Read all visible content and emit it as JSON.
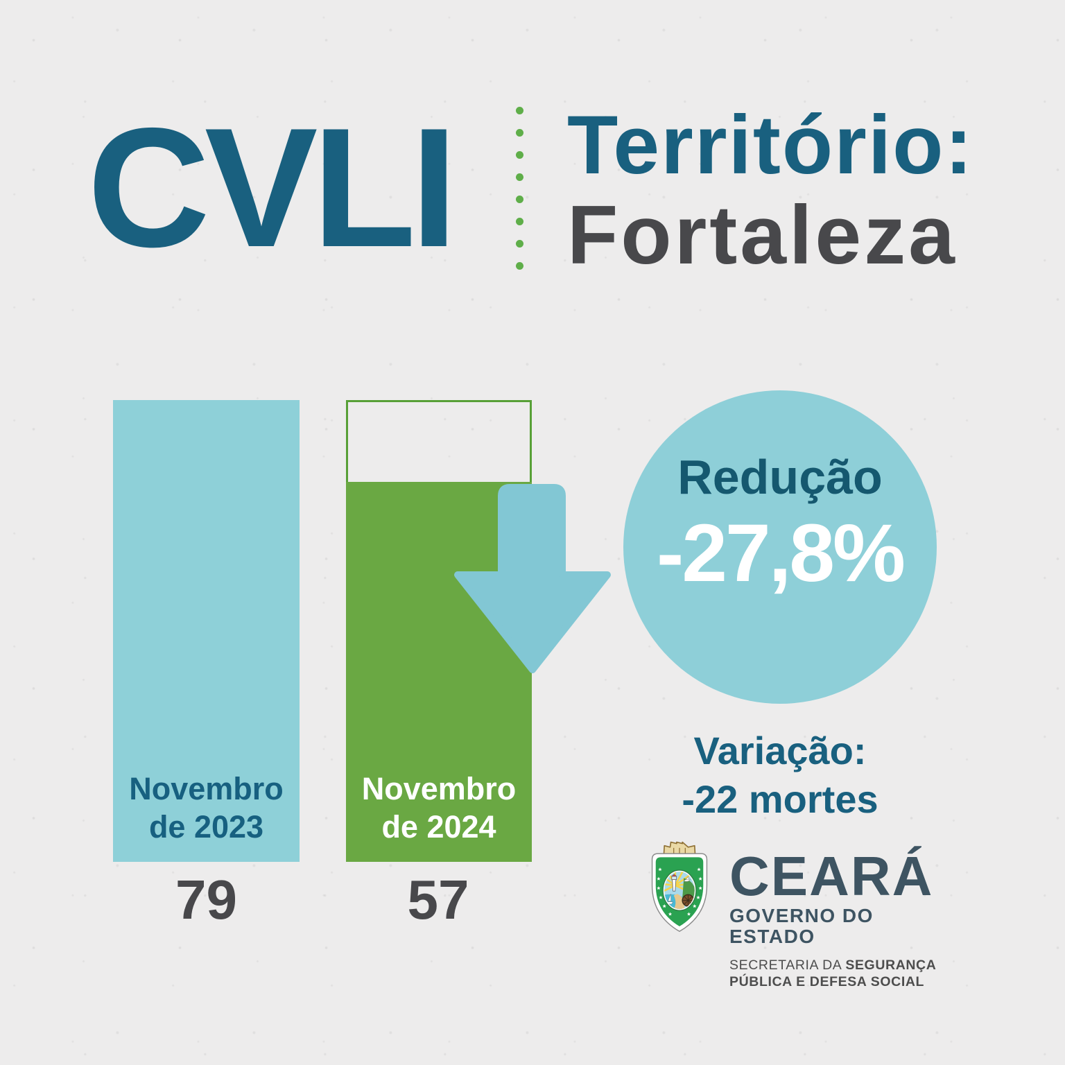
{
  "header": {
    "title": "CVLI",
    "territory_label": "Território:",
    "territory_value": "Fortaleza"
  },
  "chart_data": {
    "type": "bar",
    "title": "CVLI — Território: Fortaleza",
    "categories": [
      "Novembro de 2023",
      "Novembro de 2024"
    ],
    "values": [
      79,
      57
    ],
    "series_colors": [
      "#8ed0d8",
      "#6aa843"
    ],
    "ylim": [
      0,
      79
    ],
    "grid": false,
    "legend": false,
    "annotations": {
      "reduction_label": "Redução",
      "reduction_value_pct": "-27,8%",
      "variation_label": "Variação:",
      "variation_value": "-22 mortes",
      "outline_note": "2024 bar shows empty outlined segment up to 2023 level"
    }
  },
  "reduction": {
    "label": "Redução",
    "value": "-27,8%"
  },
  "variation": {
    "label": "Variação:",
    "value": "-22 mortes"
  },
  "logo": {
    "state": "CEARÁ",
    "government": "GOVERNO DO ESTADO",
    "secretariat_regular": "SECRETARIA DA ",
    "secretariat_bold": "SEGURANÇA",
    "secretariat_line2": "PÚBLICA E DEFESA SOCIAL"
  },
  "colors": {
    "teal_dark": "#19607f",
    "gray_dark": "#48484b",
    "bar_blue": "#8ed0d8",
    "circle_blue": "#8ecfd8",
    "arrow_blue": "#82c7d4",
    "green": "#6aa843",
    "green_outline": "#58a037",
    "dot_green": "#5fae49",
    "slate_logo": "#3e5462",
    "paper": "#edecec"
  }
}
